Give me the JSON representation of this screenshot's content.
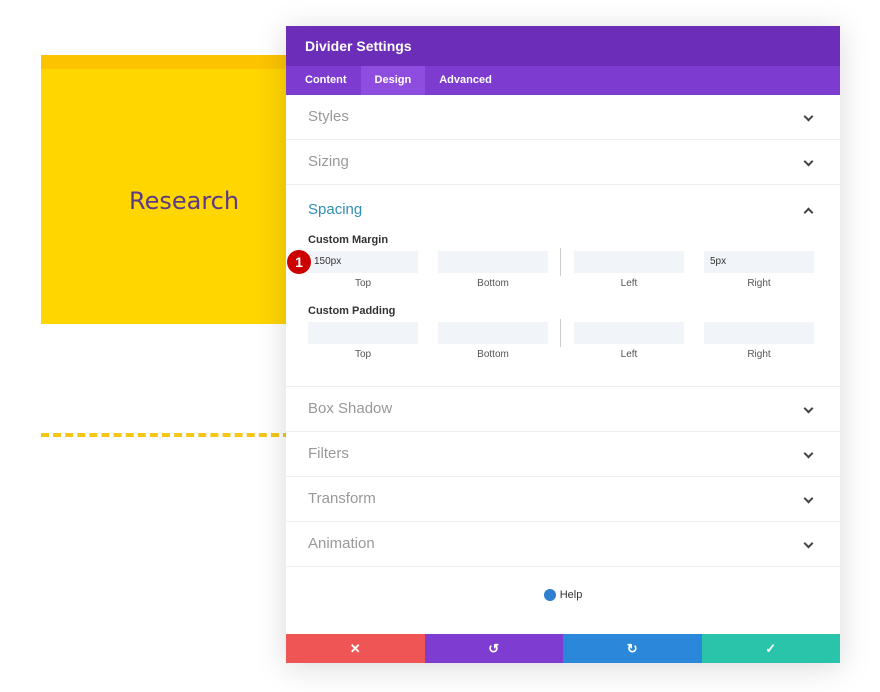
{
  "canvas": {
    "card_text": "Research"
  },
  "modal": {
    "title": "Divider Settings",
    "tabs": [
      "Content",
      "Design",
      "Advanced"
    ],
    "sections_top": [
      "Styles",
      "Sizing"
    ],
    "spacing": {
      "title": "Spacing",
      "margin": {
        "label": "Custom Margin",
        "badge": "1",
        "values": [
          "150px",
          "",
          "",
          "5px"
        ]
      },
      "padding": {
        "label": "Custom Padding"
      },
      "field_labels": [
        "Top",
        "Bottom",
        "Left",
        "Right"
      ]
    },
    "sections_bottom": [
      "Box Shadow",
      "Filters",
      "Transform",
      "Animation"
    ],
    "help": "Help"
  }
}
